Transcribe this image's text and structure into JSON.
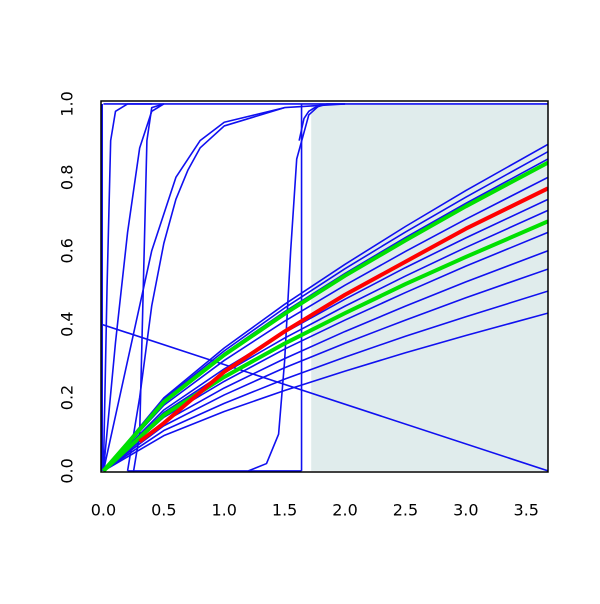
{
  "chart_data": {
    "type": "line",
    "xlim": [
      -0.02,
      3.68
    ],
    "ylim": [
      -0.003,
      1.008
    ],
    "xticks": [
      {
        "value": 0,
        "label": "0.0"
      },
      {
        "value": 0.5,
        "label": "0.5"
      },
      {
        "value": 1,
        "label": "1.0"
      },
      {
        "value": 1.5,
        "label": "1.5"
      },
      {
        "value": 2,
        "label": "2.0"
      },
      {
        "value": 2.5,
        "label": "2.5"
      },
      {
        "value": 3,
        "label": "3.0"
      },
      {
        "value": 3.5,
        "label": "3.5"
      }
    ],
    "yticks": [
      {
        "value": 0,
        "label": "0.0"
      },
      {
        "value": 0.2,
        "label": "0.2"
      },
      {
        "value": 0.4,
        "label": "0.4"
      },
      {
        "value": 0.6,
        "label": "0.6"
      },
      {
        "value": 0.8,
        "label": "0.8"
      },
      {
        "value": 1,
        "label": "1.0"
      }
    ],
    "shaded_region": {
      "x": [
        1.72,
        3.68
      ],
      "y": [
        0,
        1
      ],
      "color": "#e0ecec"
    },
    "series": [
      {
        "color": "#1010f0",
        "x": [
          -0.02,
          3.68
        ],
        "values": [
          0.4,
          0
        ]
      },
      {
        "color": "#1010f0",
        "x": [
          -0.01,
          -0.01
        ],
        "values": [
          0,
          1
        ]
      },
      {
        "color": "#1010f0",
        "x": [
          0,
          3.68
        ],
        "values": [
          1,
          1
        ]
      },
      {
        "color": "#1010f0",
        "x": [
          0,
          0.03,
          0.06,
          0.1,
          0.2,
          0.4
        ],
        "values": [
          0,
          0.5,
          0.9,
          0.98,
          1,
          1
        ]
      },
      {
        "color": "#1010f0",
        "x": [
          0,
          0.1,
          0.2,
          0.3,
          0.4,
          0.5
        ],
        "values": [
          0,
          0.35,
          0.65,
          0.88,
          0.98,
          1
        ]
      },
      {
        "color": "#1010f0",
        "x": [
          0.25,
          0.3,
          0.33,
          0.36,
          0.4,
          0.5
        ],
        "values": [
          0,
          0.1,
          0.5,
          0.9,
          0.99,
          1
        ]
      },
      {
        "color": "#1010f0",
        "x": [
          0,
          0.2,
          0.4,
          0.6,
          0.8,
          1,
          1.5,
          2
        ],
        "values": [
          0,
          0.3,
          0.6,
          0.8,
          0.9,
          0.95,
          0.99,
          1
        ]
      },
      {
        "color": "#1010f0",
        "x": [
          0.2,
          0.3,
          0.4,
          0.5,
          0.6,
          0.7,
          0.8,
          1,
          1.5
        ],
        "values": [
          0,
          0.2,
          0.45,
          0.62,
          0.74,
          0.82,
          0.88,
          0.94,
          0.99
        ]
      },
      {
        "color": "#1010f0",
        "x": [
          1.2,
          1.35,
          1.45,
          1.5,
          1.55,
          1.6,
          1.7,
          1.8
        ],
        "values": [
          0,
          0.02,
          0.1,
          0.3,
          0.6,
          0.85,
          0.97,
          1
        ]
      },
      {
        "color": "#1010f0",
        "x": [
          1.64,
          1.64
        ],
        "values": [
          0,
          1
        ]
      },
      {
        "color": "#1010f0",
        "x": [
          1.62,
          1.66,
          1.7,
          1.75,
          1.85,
          2
        ],
        "values": [
          0.9,
          0.96,
          0.98,
          0.99,
          1,
          1
        ]
      },
      {
        "color": "#1010f0",
        "x": [
          0.2,
          1.2,
          1.64
        ],
        "values": [
          0,
          0,
          0
        ]
      },
      {
        "color": "#1010f0",
        "x": [
          0,
          0.5,
          1,
          1.5,
          2,
          2.5,
          3,
          3.68
        ],
        "values": [
          0,
          0.199,
          0.335,
          0.454,
          0.563,
          0.666,
          0.764,
          0.89
        ]
      },
      {
        "color": "#1010f0",
        "x": [
          0,
          0.5,
          1,
          1.5,
          2,
          2.5,
          3,
          3.68
        ],
        "values": [
          0,
          0.195,
          0.327,
          0.444,
          0.551,
          0.651,
          0.746,
          0.87
        ]
      },
      {
        "color": "#1010f0",
        "x": [
          0,
          0.5,
          1,
          1.5,
          2,
          2.5,
          3,
          3.68
        ],
        "values": [
          0,
          0.19,
          0.32,
          0.434,
          0.538,
          0.636,
          0.729,
          0.85
        ]
      },
      {
        "color": "#1010f0",
        "x": [
          0,
          0.5,
          1,
          1.5,
          2,
          2.5,
          3,
          3.68
        ],
        "values": [
          0,
          0.179,
          0.301,
          0.408,
          0.506,
          0.598,
          0.686,
          0.8
        ]
      },
      {
        "color": "#1010f0",
        "x": [
          0,
          0.5,
          1,
          1.5,
          2,
          2.5,
          3,
          3.68
        ],
        "values": [
          0,
          0.166,
          0.278,
          0.377,
          0.468,
          0.554,
          0.635,
          0.74
        ]
      },
      {
        "color": "#1010f0",
        "x": [
          0,
          0.5,
          1,
          1.5,
          2,
          2.5,
          3,
          3.68
        ],
        "values": [
          0,
          0.159,
          0.267,
          0.362,
          0.449,
          0.531,
          0.609,
          0.71
        ]
      },
      {
        "color": "#1010f0",
        "x": [
          0,
          0.5,
          1,
          1.5,
          2,
          2.5,
          3,
          3.68
        ],
        "values": [
          0,
          0.146,
          0.244,
          0.332,
          0.411,
          0.486,
          0.558,
          0.65
        ]
      },
      {
        "color": "#1010f0",
        "x": [
          0,
          0.5,
          1,
          1.5,
          2,
          2.5,
          3,
          3.68
        ],
        "values": [
          0,
          0.134,
          0.226,
          0.306,
          0.38,
          0.449,
          0.515,
          0.6
        ]
      },
      {
        "color": "#1010f0",
        "x": [
          0,
          0.5,
          1,
          1.5,
          2,
          2.5,
          3,
          3.68
        ],
        "values": [
          0,
          0.123,
          0.207,
          0.281,
          0.348,
          0.411,
          0.472,
          0.55
        ]
      },
      {
        "color": "#1010f0",
        "x": [
          0,
          0.5,
          1,
          1.5,
          2,
          2.5,
          3,
          3.68
        ],
        "values": [
          0,
          0.11,
          0.184,
          0.25,
          0.31,
          0.367,
          0.42,
          0.49
        ]
      },
      {
        "color": "#1010f0",
        "x": [
          0,
          0.5,
          1,
          1.5,
          2,
          2.5,
          3,
          3.68
        ],
        "values": [
          0,
          0.096,
          0.162,
          0.219,
          0.272,
          0.322,
          0.369,
          0.43
        ]
      },
      {
        "color": "#00e000",
        "x": [
          0,
          0.5,
          1,
          1.5,
          2,
          2.5,
          3,
          3.68
        ],
        "values": [
          0,
          0.188,
          0.316,
          0.428,
          0.532,
          0.628,
          0.721,
          0.84
        ]
      },
      {
        "color": "#00e000",
        "x": [
          0,
          0.5,
          1,
          1.5,
          2,
          2.5,
          3,
          3.68
        ],
        "values": [
          0,
          0.152,
          0.256,
          0.347,
          0.43,
          0.509,
          0.583,
          0.68
        ]
      },
      {
        "color": "#ff0000",
        "x": [
          0.3,
          0.5,
          1,
          1.5,
          2,
          2.5,
          3,
          3.68
        ],
        "values": [
          0.08,
          0.13,
          0.27,
          0.38,
          0.48,
          0.57,
          0.66,
          0.77
        ]
      }
    ]
  }
}
